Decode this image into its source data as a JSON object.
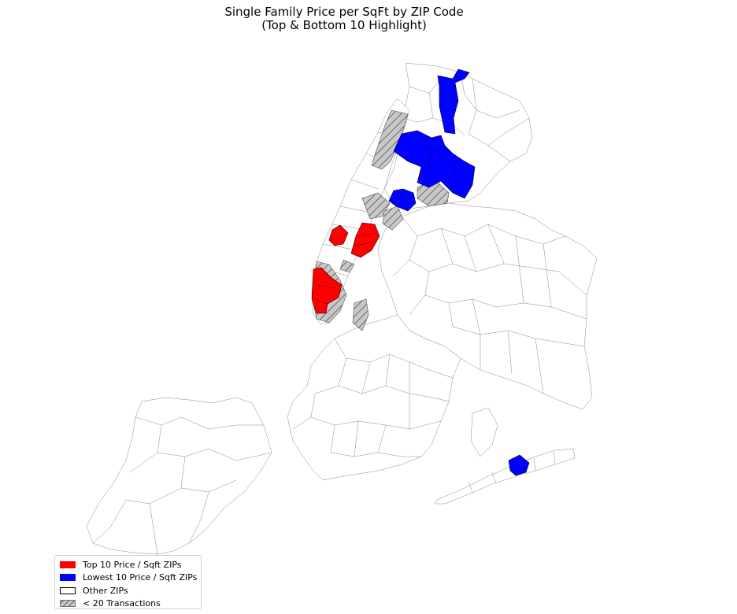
{
  "title": {
    "line1": "Single Family Price per SqFt by ZIP Code",
    "line2": "(Top & Bottom 10 Highlight)"
  },
  "legend": {
    "items": [
      {
        "label": "Top 10 Price / Sqft ZIPs",
        "color": "#ff0000",
        "style": "fill"
      },
      {
        "label": "Lowest 10 Price / Sqft ZIPs",
        "color": "#0000ff",
        "style": "fill"
      },
      {
        "label": "Other ZIPs",
        "color": "#ffffff",
        "style": "outline"
      },
      {
        "label": "< 20 Transactions",
        "color": "#c8c8c8",
        "style": "hatch"
      }
    ]
  },
  "colors": {
    "top10": "#ff0000",
    "lowest10": "#0000ff",
    "other": "#ffffff",
    "low_transactions": "#c8c8c8",
    "boundary": "#8a8a8a"
  },
  "map": {
    "region": "New York City ZIP codes",
    "categories": [
      "Top 10 Price / Sqft ZIPs",
      "Lowest 10 Price / Sqft ZIPs",
      "Other ZIPs",
      "< 20 Transactions"
    ]
  }
}
